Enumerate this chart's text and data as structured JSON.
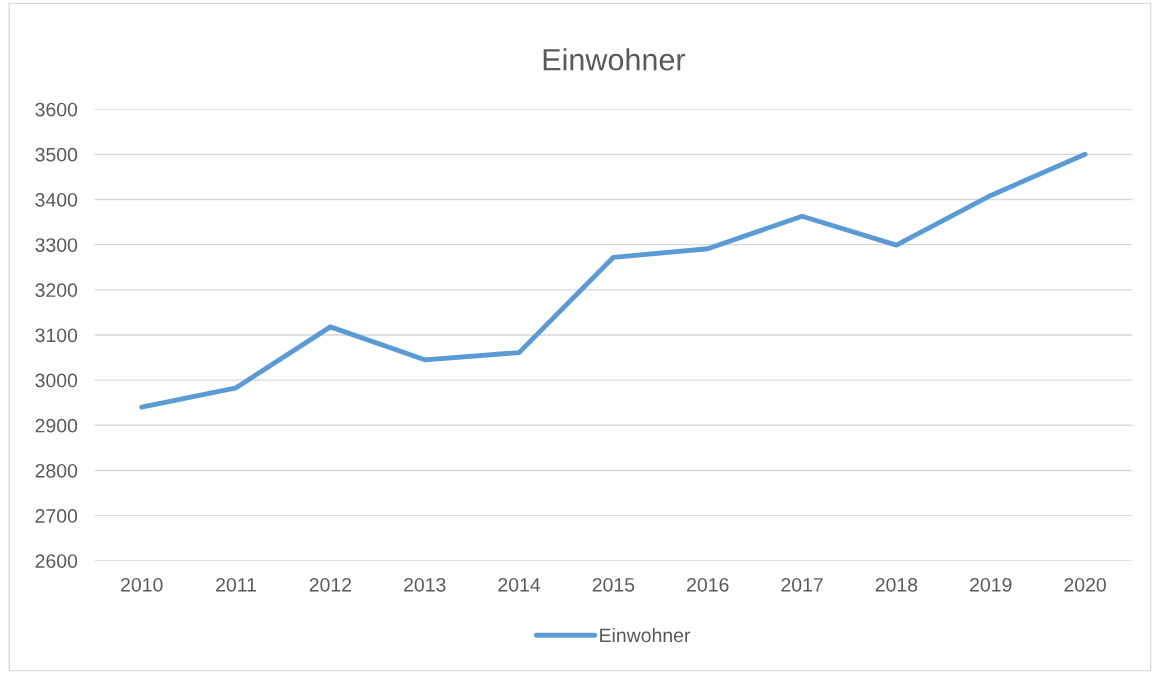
{
  "chart_data": {
    "type": "line",
    "title": "Einwohner",
    "categories": [
      "2010",
      "2011",
      "2012",
      "2013",
      "2014",
      "2015",
      "2016",
      "2017",
      "2018",
      "2019",
      "2020"
    ],
    "series": [
      {
        "name": "Einwohner",
        "color": "#5b9bd5",
        "values": [
          2940,
          2983,
          3118,
          3045,
          3061,
          3272,
          3291,
          3363,
          3299,
          3409,
          3500
        ]
      }
    ],
    "ylim": [
      2600,
      3600
    ],
    "yticks": [
      2600,
      2700,
      2800,
      2900,
      3000,
      3100,
      3200,
      3300,
      3400,
      3500,
      3600
    ],
    "grid": "y",
    "legend": "bottom",
    "line_style": "solid",
    "marker": "none"
  }
}
